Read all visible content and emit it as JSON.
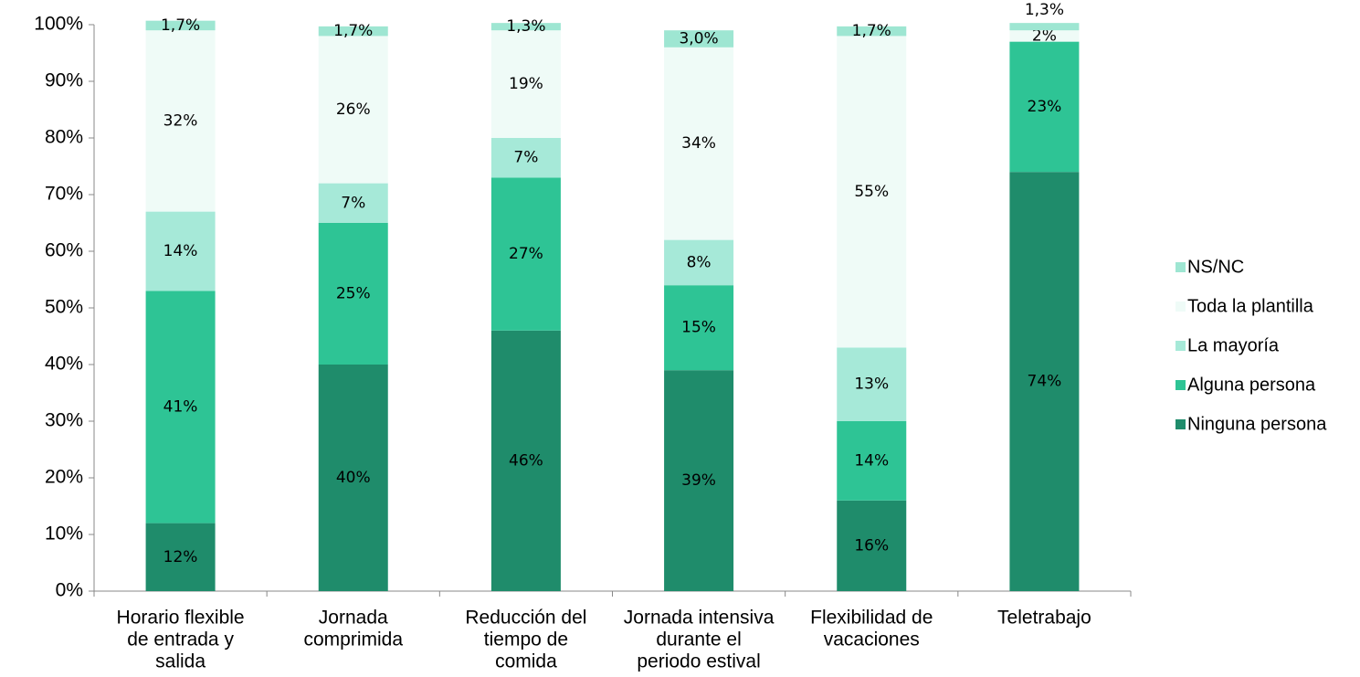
{
  "chart_data": {
    "type": "stacked_bar",
    "categories": [
      [
        "Horario flexible",
        "de entrada y",
        "salida"
      ],
      [
        "Jornada",
        "comprimida"
      ],
      [
        "Reducción del",
        "tiempo de",
        "comida"
      ],
      [
        "Jornada intensiva",
        "durante el",
        "periodo estival"
      ],
      [
        "Flexibilidad de",
        "vacaciones"
      ],
      [
        "Teletrabajo"
      ]
    ],
    "series": [
      {
        "name": "Ninguna persona",
        "color": "#1f8c6b",
        "values": [
          12,
          40,
          46,
          39,
          16,
          74
        ],
        "value_labels": [
          "12%",
          "40%",
          "46%",
          "39%",
          "16%",
          "74%"
        ]
      },
      {
        "name": "Alguna persona",
        "color": "#2ec495",
        "values": [
          41,
          25,
          27,
          15,
          14,
          23
        ],
        "value_labels": [
          "41%",
          "25%",
          "27%",
          "15%",
          "14%",
          "23%"
        ]
      },
      {
        "name": "La mayoría",
        "color": "#a6e9d8",
        "values": [
          14,
          7,
          7,
          8,
          13,
          null
        ],
        "value_labels": [
          "14%",
          "7%",
          "7%",
          "8%",
          "13%",
          null
        ]
      },
      {
        "name": "Toda la plantilla",
        "color": "#effbf7",
        "values": [
          32,
          26,
          19,
          34,
          55,
          2
        ],
        "value_labels": [
          "32%",
          "26%",
          "19%",
          "34%",
          "55%",
          "2%"
        ]
      },
      {
        "name": "NS/NC",
        "color": "#9ee6d2",
        "values": [
          1.7,
          1.7,
          1.3,
          3.0,
          1.7,
          1.3
        ],
        "value_labels": [
          "1,7%",
          "1,7%",
          "1,3%",
          "3,0%",
          "1,7%",
          "1,3%"
        ]
      }
    ],
    "ylim": [
      0,
      100
    ],
    "yticks": [
      {
        "value": 0,
        "label": "0%"
      },
      {
        "value": 10,
        "label": "10%"
      },
      {
        "value": 20,
        "label": "20%"
      },
      {
        "value": 30,
        "label": "30%"
      },
      {
        "value": 40,
        "label": "40%"
      },
      {
        "value": 50,
        "label": "50%"
      },
      {
        "value": 60,
        "label": "60%"
      },
      {
        "value": 70,
        "label": "70%"
      },
      {
        "value": 80,
        "label": "80%"
      },
      {
        "value": 90,
        "label": "90%"
      },
      {
        "value": 100,
        "label": "100%"
      }
    ],
    "legend": "right"
  }
}
